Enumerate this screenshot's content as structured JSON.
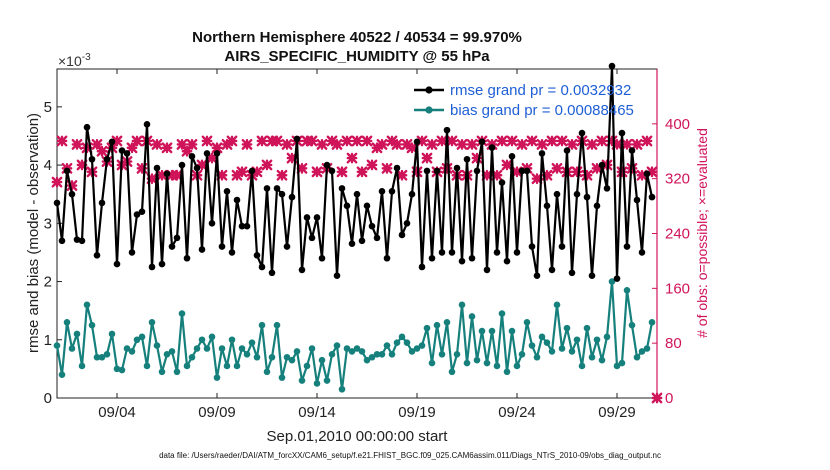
{
  "chart_data": {
    "type": "line",
    "title": "Northern Hemisphere 40522 / 40534 = 99.970%",
    "subtitle": "AIRS_SPECIFIC_HUMIDITY @ 55 hPa",
    "xlabel": "Sep.01,2010 00:00:00 start",
    "ylabel_left": "rmse and bias (model - observation)",
    "ylabel_right": "# of obs: o=possible; ×=evaluated",
    "exponent_label": "×10",
    "exponent_power": "-3",
    "footnote": "data file: /Users/raeder/DAI/ATM_forcXX/CAM6_setup/f.e21.FHIST_BGC.f09_025.CAM6assim.011/Diags_NTrS_2010-09/obs_diag_output.nc",
    "x_ticks": [
      "09/04",
      "09/09",
      "09/14",
      "09/19",
      "09/24",
      "09/29"
    ],
    "x_tick_days": [
      4,
      9,
      14,
      19,
      24,
      29
    ],
    "xlim": [
      1,
      31
    ],
    "ylim_left": [
      0,
      5.65
    ],
    "y_ticks_left": [
      "0",
      "1",
      "2",
      "3",
      "4",
      "5"
    ],
    "ylim_right": [
      0,
      480
    ],
    "y_ticks_right": [
      "0",
      "80",
      "160",
      "240",
      "320",
      "400"
    ],
    "colors": {
      "rmse": "#000000",
      "bias": "#16807c",
      "obs": "#d0145a",
      "legend_text": "#1f5fd6"
    },
    "series": [
      {
        "name": "rmse grand pr = 0.0032932",
        "axis": "left",
        "x": [
          1.0,
          1.25,
          1.5,
          1.75,
          2.0,
          2.25,
          2.5,
          2.75,
          3.0,
          3.25,
          3.5,
          3.75,
          4.0,
          4.25,
          4.5,
          4.75,
          5.0,
          5.25,
          5.5,
          5.75,
          6.0,
          6.25,
          6.5,
          6.75,
          7.0,
          7.25,
          7.5,
          7.75,
          8.0,
          8.25,
          8.5,
          8.75,
          9.0,
          9.25,
          9.5,
          9.75,
          10.0,
          10.25,
          10.5,
          10.75,
          11.0,
          11.25,
          11.5,
          11.75,
          12.0,
          12.25,
          12.5,
          12.75,
          13.0,
          13.25,
          13.5,
          13.75,
          14.0,
          14.25,
          14.5,
          14.75,
          15.0,
          15.25,
          15.5,
          15.75,
          16.0,
          16.25,
          16.5,
          16.75,
          17.0,
          17.25,
          17.5,
          17.75,
          18.0,
          18.25,
          18.5,
          18.75,
          19.0,
          19.25,
          19.5,
          19.75,
          20.0,
          20.25,
          20.5,
          20.75,
          21.0,
          21.25,
          21.5,
          21.75,
          22.0,
          22.25,
          22.5,
          22.75,
          23.0,
          23.25,
          23.5,
          23.75,
          24.0,
          24.25,
          24.5,
          24.75,
          25.0,
          25.25,
          25.5,
          25.75,
          26.0,
          26.25,
          26.5,
          26.75,
          27.0,
          27.25,
          27.5,
          27.75,
          28.0,
          28.25,
          28.5,
          28.75,
          29.0,
          29.25,
          29.5,
          29.75,
          30.0,
          30.25,
          30.5,
          30.75
        ],
        "values": [
          3.35,
          2.7,
          3.9,
          3.5,
          2.72,
          2.7,
          4.65,
          4.1,
          2.45,
          3.35,
          4.1,
          4.4,
          2.3,
          4.25,
          4.2,
          2.5,
          3.15,
          3.2,
          4.7,
          2.25,
          3.95,
          2.3,
          3.85,
          2.6,
          2.75,
          4.0,
          2.4,
          4.15,
          3.95,
          2.55,
          4.2,
          3.0,
          4.2,
          2.6,
          3.55,
          2.5,
          3.4,
          2.95,
          2.95,
          3.9,
          2.45,
          2.25,
          3.6,
          2.15,
          3.6,
          3.5,
          2.6,
          3.45,
          4.45,
          2.2,
          3.1,
          2.75,
          3.1,
          2.4,
          4.0,
          3.9,
          2.1,
          3.6,
          3.3,
          2.65,
          3.5,
          2.7,
          3.3,
          2.95,
          2.75,
          3.55,
          2.4,
          3.55,
          3.95,
          2.8,
          3.0,
          3.5,
          4.4,
          2.25,
          3.9,
          2.4,
          3.9,
          2.5,
          4.6,
          2.5,
          3.95,
          2.35,
          4.1,
          2.4,
          3.9,
          4.4,
          2.2,
          4.3,
          2.5,
          3.7,
          2.35,
          4.15,
          2.5,
          3.9,
          3.9,
          2.6,
          2.1,
          4.2,
          3.3,
          2.2,
          3.5,
          2.6,
          4.25,
          2.15,
          3.5,
          4.55,
          3.45,
          2.1,
          3.3,
          4.0,
          3.6,
          5.7,
          2.05,
          4.55,
          2.6,
          4.25,
          3.4,
          2.5,
          3.85,
          3.45
        ]
      },
      {
        "name": "bias grand pr = 0.00088465",
        "axis": "left",
        "x": [
          1.0,
          1.25,
          1.5,
          1.75,
          2.0,
          2.25,
          2.5,
          2.75,
          3.0,
          3.25,
          3.5,
          3.75,
          4.0,
          4.25,
          4.5,
          4.75,
          5.0,
          5.25,
          5.5,
          5.75,
          6.0,
          6.25,
          6.5,
          6.75,
          7.0,
          7.25,
          7.5,
          7.75,
          8.0,
          8.25,
          8.5,
          8.75,
          9.0,
          9.25,
          9.5,
          9.75,
          10.0,
          10.25,
          10.5,
          10.75,
          11.0,
          11.25,
          11.5,
          11.75,
          12.0,
          12.25,
          12.5,
          12.75,
          13.0,
          13.25,
          13.5,
          13.75,
          14.0,
          14.25,
          14.5,
          14.75,
          15.0,
          15.25,
          15.5,
          15.75,
          16.0,
          16.25,
          16.5,
          16.75,
          17.0,
          17.25,
          17.5,
          17.75,
          18.0,
          18.25,
          18.5,
          18.75,
          19.0,
          19.25,
          19.5,
          19.75,
          20.0,
          20.25,
          20.5,
          20.75,
          21.0,
          21.25,
          21.5,
          21.75,
          22.0,
          22.25,
          22.5,
          22.75,
          23.0,
          23.25,
          23.5,
          23.75,
          24.0,
          24.25,
          24.5,
          24.75,
          25.0,
          25.25,
          25.5,
          25.75,
          26.0,
          26.25,
          26.5,
          26.75,
          27.0,
          27.25,
          27.5,
          27.75,
          28.0,
          28.25,
          28.5,
          28.75,
          29.0,
          29.25,
          29.5,
          29.75,
          30.0,
          30.25,
          30.5,
          30.75
        ],
        "values": [
          0.9,
          0.4,
          1.3,
          0.85,
          1.1,
          0.55,
          1.6,
          1.25,
          0.7,
          0.7,
          0.75,
          1.1,
          0.5,
          0.48,
          0.85,
          0.8,
          1.0,
          1.05,
          0.55,
          1.3,
          0.9,
          0.45,
          0.75,
          0.8,
          0.45,
          1.45,
          0.55,
          0.7,
          0.85,
          1.0,
          0.85,
          1.05,
          0.35,
          0.85,
          0.55,
          1.0,
          0.55,
          0.85,
          0.75,
          0.95,
          0.7,
          1.25,
          0.45,
          0.7,
          1.25,
          0.35,
          0.7,
          0.65,
          0.8,
          0.3,
          0.55,
          0.85,
          0.25,
          0.65,
          0.3,
          0.75,
          0.9,
          0.15,
          0.85,
          0.8,
          0.85,
          0.8,
          0.65,
          0.7,
          0.75,
          0.75,
          0.9,
          0.75,
          0.95,
          1.05,
          0.95,
          0.8,
          0.85,
          0.9,
          1.2,
          0.6,
          1.25,
          0.75,
          1.3,
          0.45,
          0.75,
          1.6,
          0.6,
          1.4,
          0.65,
          1.15,
          0.6,
          1.15,
          0.55,
          1.45,
          0.45,
          1.15,
          0.55,
          0.75,
          1.3,
          0.9,
          0.7,
          1.05,
          0.95,
          0.8,
          1.6,
          0.85,
          1.2,
          0.8,
          1.0,
          0.55,
          1.2,
          0.7,
          1.0,
          0.65,
          1.05,
          2.0,
          0.55,
          0.6,
          1.85,
          1.25,
          0.7,
          0.8,
          0.85,
          1.3
        ]
      },
      {
        "name": "obs evaluated (×)",
        "axis": "right",
        "x": [
          1.0,
          1.25,
          1.5,
          1.75,
          2.0,
          2.25,
          2.5,
          2.75,
          3.0,
          3.25,
          3.5,
          3.75,
          4.0,
          4.25,
          4.5,
          4.75,
          5.0,
          5.25,
          5.5,
          5.75,
          6.0,
          6.25,
          6.5,
          6.75,
          7.0,
          7.25,
          7.5,
          7.75,
          8.0,
          8.25,
          8.5,
          8.75,
          9.0,
          9.25,
          9.5,
          9.75,
          10.0,
          10.25,
          10.5,
          10.75,
          11.0,
          11.25,
          11.5,
          11.75,
          12.0,
          12.25,
          12.5,
          12.75,
          13.0,
          13.25,
          13.5,
          13.75,
          14.0,
          14.25,
          14.5,
          14.75,
          15.0,
          15.25,
          15.5,
          15.75,
          16.0,
          16.25,
          16.5,
          16.75,
          17.0,
          17.25,
          17.5,
          17.75,
          18.0,
          18.25,
          18.5,
          18.75,
          19.0,
          19.25,
          19.5,
          19.75,
          20.0,
          20.25,
          20.5,
          20.75,
          21.0,
          21.25,
          21.5,
          21.75,
          22.0,
          22.25,
          22.5,
          22.75,
          23.0,
          23.25,
          23.5,
          23.75,
          24.0,
          24.25,
          24.5,
          24.75,
          25.0,
          25.25,
          25.5,
          25.75,
          26.0,
          26.25,
          26.5,
          26.75,
          27.0,
          27.25,
          27.5,
          27.75,
          28.0,
          28.25,
          28.5,
          28.75,
          29.0,
          29.25,
          29.5,
          29.75,
          30.0,
          30.25,
          30.5,
          30.75,
          31.0
        ],
        "values": [
          315,
          375,
          335,
          310,
          370,
          340,
          365,
          330,
          370,
          360,
          345,
          365,
          375,
          340,
          345,
          365,
          375,
          335,
          375,
          320,
          370,
          325,
          365,
          325,
          325,
          370,
          360,
          370,
          325,
          340,
          375,
          350,
          365,
          325,
          370,
          375,
          325,
          330,
          370,
          325,
          330,
          375,
          340,
          375,
          375,
          325,
          370,
          350,
          375,
          335,
          375,
          375,
          330,
          370,
          335,
          375,
          370,
          330,
          375,
          350,
          375,
          330,
          375,
          340,
          365,
          370,
          335,
          375,
          370,
          325,
          370,
          365,
          330,
          375,
          350,
          370,
          330,
          375,
          335,
          375,
          325,
          370,
          325,
          370,
          350,
          375,
          325,
          370,
          325,
          375,
          340,
          375,
          330,
          370,
          335,
          375,
          320,
          370,
          325,
          375,
          335,
          375,
          330,
          370,
          330,
          375,
          325,
          370,
          335,
          375,
          340,
          375,
          370,
          330,
          370,
          335,
          370,
          325,
          375,
          330,
          0
        ]
      }
    ],
    "legend": [
      "rmse grand pr = 0.0032932",
      "bias grand pr = 0.00088465"
    ],
    "legend_position": "top-right"
  }
}
